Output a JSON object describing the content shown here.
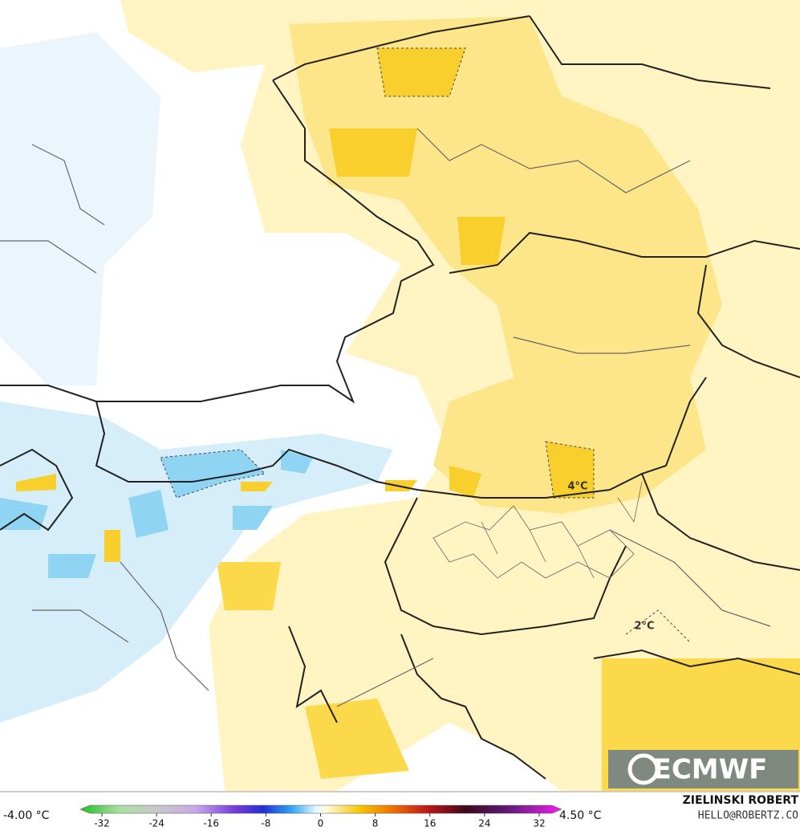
{
  "map": {
    "annotations": [
      "4°C",
      "2°C"
    ],
    "logo": "ECMWF"
  },
  "legend": {
    "min_label": "-4.00 °C",
    "max_label": "4.50 °C",
    "ticks": [
      -32,
      -24,
      -16,
      -8,
      0,
      8,
      16,
      24,
      32
    ]
  },
  "credit": {
    "author": "ZIELINSKI ROBERT",
    "contact": "HELLO@ROBERTZ.CO"
  }
}
